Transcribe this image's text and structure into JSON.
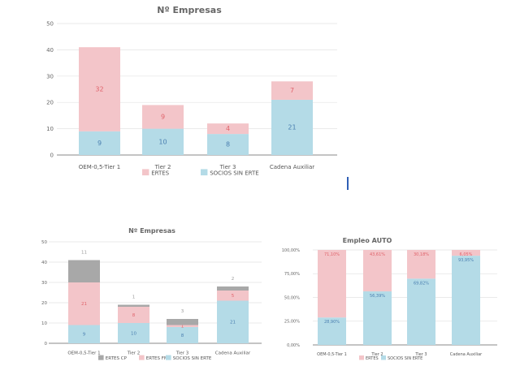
{
  "chart_data": [
    {
      "type": "bar",
      "stacked": true,
      "title": "Nº Empresas",
      "categories": [
        "OEM-0,5-Tier 1",
        "Tier 2",
        "Tier 3",
        "Cadena Auxiliar"
      ],
      "ylim": [
        0,
        50
      ],
      "yticks": [
        "0",
        "10",
        "20",
        "30",
        "40",
        "50"
      ],
      "grid": true,
      "legend": "bottom",
      "series": [
        {
          "name": "SOCIOS SIN ERTE",
          "values": [
            9,
            10,
            8,
            21
          ],
          "color": "#b4dbe7",
          "label_color": "#4a7fb0"
        },
        {
          "name": "ERTES",
          "values": [
            32,
            9,
            4,
            7
          ],
          "color": "#f3c5c9",
          "label_color": "#e0636b"
        }
      ]
    },
    {
      "type": "bar",
      "stacked": true,
      "title": "Nº Empresas",
      "categories": [
        "OEM-0,5-Tier 1",
        "Tier 2",
        "Tier 3",
        "Cadena Auxiliar"
      ],
      "ylim": [
        0,
        50
      ],
      "yticks": [
        "0",
        "10",
        "20",
        "30",
        "40",
        "50"
      ],
      "grid": true,
      "legend": "bottom",
      "series": [
        {
          "name": "SOCIOS SIN ERTE",
          "values": [
            9,
            10,
            8,
            21
          ],
          "color": "#b4dbe7",
          "label_color": "#4a7fb0"
        },
        {
          "name": "ERTES FM",
          "values": [
            21,
            8,
            1,
            5
          ],
          "color": "#f3c5c9",
          "label_color": "#e0636b"
        },
        {
          "name": "ERTES CP",
          "values": [
            11,
            1,
            3,
            2
          ],
          "color": "#a8a8a8",
          "label_color": "#999999",
          "labels_above": true
        }
      ]
    },
    {
      "type": "bar",
      "stacked": true,
      "title": "Empleo AUTO",
      "categories": [
        "OEM-0,5-Tier 1",
        "Tier 2",
        "Tier 3",
        "Cadena Auxiliar"
      ],
      "ylim": [
        0,
        100
      ],
      "yticks": [
        "0,00%",
        "25,00%",
        "50,00%",
        "75,00%",
        "100,00%"
      ],
      "grid": true,
      "legend": "bottom",
      "series": [
        {
          "name": "SOCIOS SIN ERTE",
          "values": [
            28.9,
            56.39,
            69.82,
            93.95
          ],
          "labels": [
            "28,90%",
            "56,39%",
            "69,82%",
            "93,95%"
          ],
          "color": "#b4dbe7",
          "label_color": "#4a7fb0",
          "label_top": true
        },
        {
          "name": "ERTES",
          "values": [
            71.1,
            43.61,
            30.18,
            6.05
          ],
          "labels": [
            "71,10%",
            "43,61%",
            "30,18%",
            "6,05%"
          ],
          "color": "#f3c5c9",
          "label_color": "#e0636b",
          "label_top": true
        }
      ]
    }
  ]
}
